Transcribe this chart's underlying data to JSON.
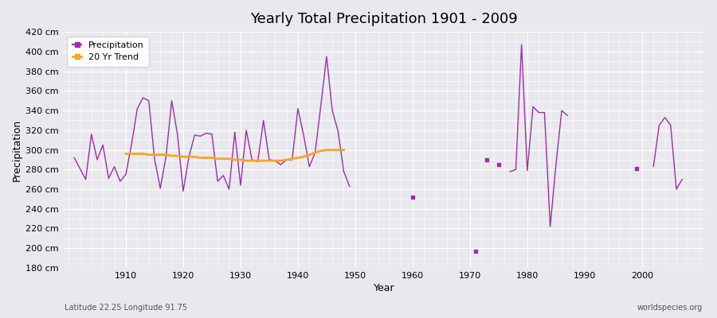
{
  "title": "Yearly Total Precipitation 1901 - 2009",
  "xlabel": "Year",
  "ylabel": "Precipitation",
  "subtitle_left": "Latitude 22.25 Longitude 91.75",
  "subtitle_right": "worldspecies.org",
  "ylim": [
    180,
    420
  ],
  "yticks": [
    180,
    200,
    220,
    240,
    260,
    280,
    300,
    320,
    340,
    360,
    380,
    400,
    420
  ],
  "xlim": [
    1899,
    2011
  ],
  "xticks": [
    1910,
    1920,
    1930,
    1940,
    1950,
    1960,
    1970,
    1980,
    1990,
    2000
  ],
  "precip_color": "#9b30a0",
  "trend_color": "#f5a623",
  "bg_color": "#e8e8ee",
  "grid_color": "#ffffff",
  "years": [
    1901,
    1902,
    1903,
    1904,
    1905,
    1906,
    1907,
    1908,
    1909,
    1910,
    1911,
    1912,
    1913,
    1914,
    1915,
    1916,
    1917,
    1918,
    1919,
    1920,
    1921,
    1922,
    1923,
    1924,
    1925,
    1926,
    1927,
    1928,
    1929,
    1930,
    1931,
    1932,
    1933,
    1934,
    1935,
    1936,
    1937,
    1938,
    1939,
    1940,
    1941,
    1942,
    1943,
    1944,
    1945,
    1946,
    1947,
    1948,
    1949,
    1950,
    1951,
    1952,
    1953,
    1954,
    1955,
    1956,
    1957,
    1958,
    1959,
    1960,
    1961,
    1962,
    1963,
    1964,
    1965,
    1966,
    1967,
    1968,
    1969,
    1970,
    1971,
    1972,
    1973,
    1974,
    1975,
    1976,
    1977,
    1978,
    1979,
    1980,
    1981,
    1982,
    1983,
    1984,
    1985,
    1986,
    1987,
    1988,
    1989,
    1990,
    1991,
    1992,
    1993,
    1994,
    1995,
    1996,
    1997,
    1998,
    1999,
    2000,
    2001,
    2002,
    2003,
    2004,
    2005,
    2006,
    2007,
    2008,
    2009
  ],
  "precip": [
    292,
    281,
    270,
    316,
    290,
    305,
    271,
    283,
    268,
    275,
    306,
    342,
    353,
    350,
    291,
    261,
    293,
    350,
    316,
    258,
    293,
    315,
    314,
    317,
    316,
    268,
    274,
    260,
    318,
    264,
    320,
    290,
    288,
    330,
    290,
    289,
    285,
    290,
    290,
    342,
    315,
    283,
    297,
    345,
    395,
    340,
    319,
    278,
    263,
    null,
    null,
    null,
    null,
    null,
    null,
    null,
    null,
    null,
    null,
    252,
    null,
    null,
    null,
    null,
    null,
    null,
    null,
    null,
    null,
    null,
    197,
    null,
    290,
    null,
    285,
    null,
    278,
    280,
    407,
    279,
    344,
    338,
    338,
    222,
    285,
    340,
    335,
    null,
    null,
    null,
    null,
    null,
    null,
    null,
    null,
    null,
    null,
    null,
    281,
    null,
    null,
    283,
    325,
    333,
    325,
    260,
    270
  ],
  "trend_years": [
    1910,
    1911,
    1912,
    1913,
    1914,
    1915,
    1916,
    1917,
    1918,
    1919,
    1920,
    1921,
    1922,
    1923,
    1924,
    1925,
    1926,
    1927,
    1928,
    1929,
    1930,
    1931,
    1932,
    1933,
    1934,
    1935,
    1936,
    1937,
    1938,
    1939,
    1940,
    1941,
    1942,
    1943,
    1944,
    1945,
    1946,
    1947,
    1948
  ],
  "trend_values": [
    296,
    296,
    296,
    296,
    295,
    295,
    295,
    295,
    294,
    294,
    293,
    293,
    293,
    292,
    292,
    292,
    291,
    291,
    291,
    290,
    290,
    289,
    289,
    289,
    289,
    289,
    289,
    289,
    290,
    291,
    292,
    293,
    295,
    297,
    299,
    300,
    300,
    300,
    300
  ]
}
